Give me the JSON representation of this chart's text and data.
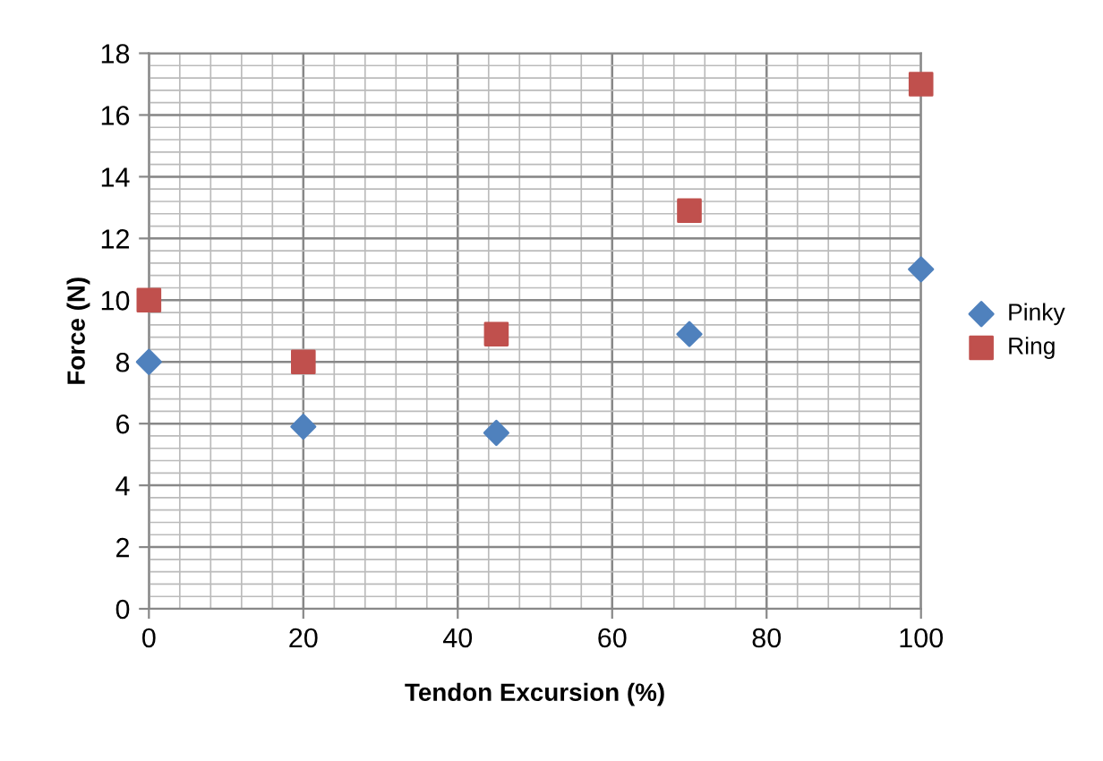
{
  "chart_data": {
    "type": "scatter",
    "xlabel": "Tendon Excursion (%)",
    "ylabel": "Force (N)",
    "series": [
      {
        "name": "Pinky",
        "color": "#4f81bd",
        "marker": "diamond",
        "x": [
          0,
          20,
          45,
          70,
          100
        ],
        "values": [
          8,
          5.9,
          5.7,
          8.9,
          11
        ]
      },
      {
        "name": "Ring",
        "color": "#c0504d",
        "marker": "square",
        "x": [
          0,
          20,
          45,
          70,
          100
        ],
        "values": [
          10,
          8,
          8.9,
          12.9,
          17
        ]
      }
    ],
    "xlim": [
      0,
      100
    ],
    "xticks": [
      0,
      20,
      40,
      60,
      80,
      100
    ],
    "ylim": [
      0,
      18
    ],
    "yticks": [
      0,
      2,
      4,
      6,
      8,
      10,
      12,
      14,
      16,
      18
    ],
    "grid": true,
    "legend": "right"
  }
}
